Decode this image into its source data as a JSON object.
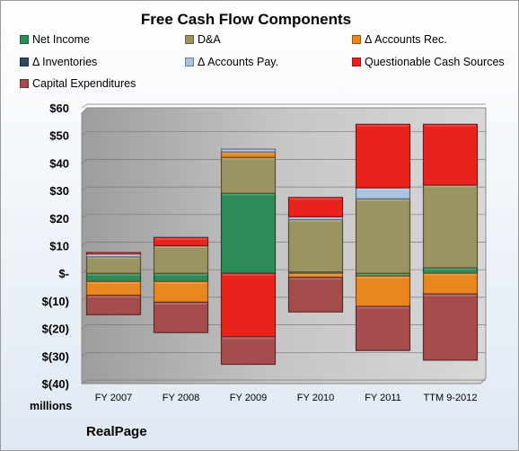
{
  "chart_data": {
    "type": "bar",
    "stacked": true,
    "title": "Free Cash Flow Components",
    "units": "millions",
    "company": "RealPage",
    "categories": [
      "FY 2007",
      "FY 2008",
      "FY 2009",
      "FY 2010",
      "FY 2011",
      "TTM 9-2012"
    ],
    "ylim": [
      -40,
      60
    ],
    "yticks": [
      60,
      50,
      40,
      30,
      20,
      10,
      0,
      -10,
      -20,
      -30,
      -40
    ],
    "ytick_labels": [
      "$60",
      "$50",
      "$40",
      "$30",
      "$20",
      "$10",
      "$-",
      "$(10)",
      "$(20)",
      "$(30)",
      "$(40)"
    ],
    "grid": true,
    "legend_position": "top",
    "series": [
      {
        "name": "Net Income",
        "color": "#2e8b57",
        "values": [
          -3,
          -3,
          29,
          0.5,
          -1,
          2
        ]
      },
      {
        "name": "D&A",
        "color": "#9c9362",
        "values": [
          6,
          10,
          13,
          19,
          27,
          30
        ]
      },
      {
        "name": "Δ Accounts Rec.",
        "color": "#e8861f",
        "values": [
          -5,
          -7.5,
          2,
          -1.5,
          -11,
          -7.5
        ]
      },
      {
        "name": "Δ Inventories",
        "color": "#2e4a66",
        "values": [
          0,
          0,
          0,
          0,
          0,
          0
        ]
      },
      {
        "name": "Δ Accounts Pay.",
        "color": "#a9c3e3",
        "values": [
          1,
          0,
          1,
          1,
          4,
          0
        ]
      },
      {
        "name": "Questionable Cash Sources",
        "color": "#e8231e",
        "values": [
          0.5,
          3,
          -23,
          7,
          23,
          22
        ]
      },
      {
        "name": "Capital Expenditures",
        "color": "#a54c4c",
        "values": [
          -7,
          -11,
          -10,
          -12.5,
          -16,
          -24
        ]
      }
    ]
  }
}
